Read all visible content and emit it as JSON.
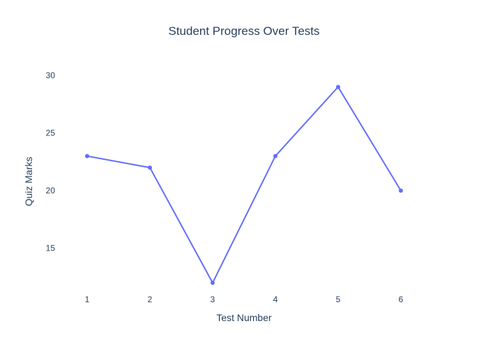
{
  "chart_data": {
    "type": "line",
    "title": "Student Progress Over Tests",
    "xlabel": "Test Number",
    "ylabel": "Quiz Marks",
    "x": [
      1,
      2,
      3,
      4,
      5,
      6
    ],
    "series": [
      {
        "values": [
          23,
          22,
          12,
          23,
          29,
          20
        ],
        "color": "#636efa"
      }
    ],
    "xlim": [
      0.5,
      6.5
    ],
    "ylim": [
      11.1,
      31.7
    ],
    "xticks": [
      "1",
      "2",
      "3",
      "4",
      "5",
      "6"
    ],
    "yticks": [
      "15",
      "20",
      "25",
      "30"
    ],
    "grid": false,
    "legend": "none",
    "markers": true
  }
}
